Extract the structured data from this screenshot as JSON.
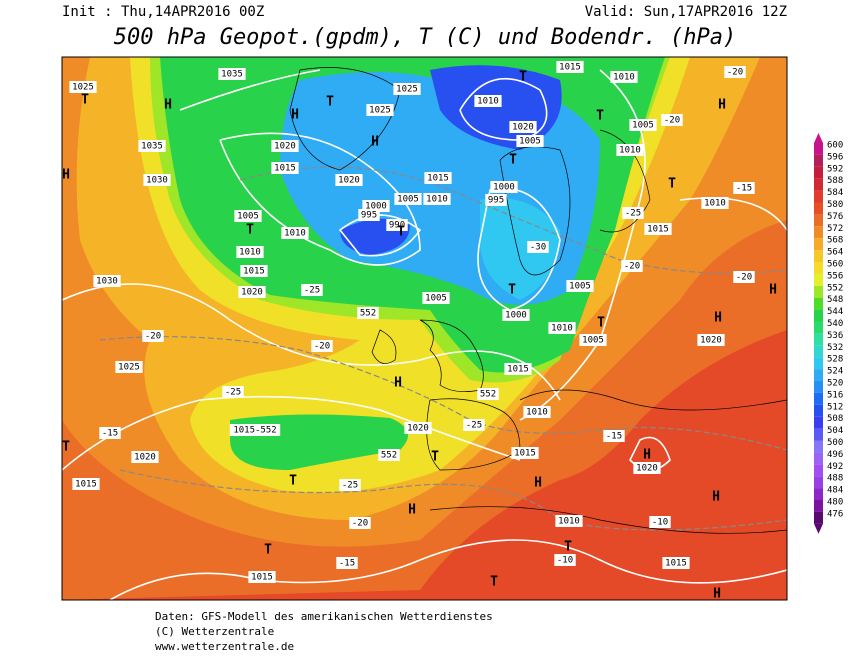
{
  "header": {
    "init": "Init : Thu,14APR2016 00Z",
    "valid": "Valid: Sun,17APR2016 12Z",
    "title": "500 hPa Geopot.(gpdm), T (C) und Bodendr. (hPa)"
  },
  "footer": [
    "Daten: GFS-Modell des amerikanischen Wetterdienstes",
    "(C) Wetterzentrale",
    "www.wetterzentrale.de"
  ],
  "colorbar": {
    "levels": [
      600,
      596,
      592,
      588,
      584,
      580,
      576,
      572,
      568,
      564,
      560,
      556,
      552,
      548,
      544,
      540,
      536,
      532,
      528,
      524,
      520,
      516,
      512,
      508,
      504,
      500,
      496,
      492,
      488,
      484,
      480,
      476
    ],
    "colors": [
      "#c8148c",
      "#b41e5a",
      "#c31e3c",
      "#d22832",
      "#e13c2d",
      "#e65028",
      "#eb6e28",
      "#f08c28",
      "#f5aa28",
      "#f5c828",
      "#f5dc28",
      "#e6f028",
      "#a0e628",
      "#50dc28",
      "#28d24a",
      "#28dc6e",
      "#30e0a0",
      "#30d8d0",
      "#30c8f0",
      "#30acf5",
      "#2890f5",
      "#1e6ef5",
      "#2850f0",
      "#3c3cf0",
      "#5a5af5",
      "#8478f8",
      "#9c64f5",
      "#a050f0",
      "#9640e6",
      "#8c28c8",
      "#7a14a0",
      "#5a0a6e"
    ]
  },
  "map_labels": [
    "T",
    "1025",
    "1035",
    "H",
    "1035",
    "1030",
    "H",
    "H",
    "T",
    "1025",
    "1025",
    "H",
    "1020",
    "1015",
    "1020",
    "1015",
    "1005",
    "1000",
    "995",
    "990",
    "T",
    "1010",
    "1005",
    "T",
    "1010",
    "1010",
    "1015",
    "1020",
    "1030",
    "-20",
    "1025",
    "-15",
    "1020",
    "1015",
    "T",
    "1015-552",
    "1020",
    "552",
    "T",
    "T",
    "-25",
    "-20",
    "H",
    "T",
    "1015",
    "-15",
    "-25",
    "H",
    "1005",
    "552",
    "-25",
    "-20",
    "T",
    "1000",
    "1015",
    "1010",
    "1005",
    "1005",
    "T",
    "1010",
    "1015",
    "H",
    "552",
    "-25",
    "-30",
    "995",
    "1000",
    "T",
    "1005",
    "T",
    "1015",
    "1010",
    "1010",
    "1020",
    "T",
    "1005",
    "-20",
    "1010",
    "T",
    "1010",
    "-15",
    "-20",
    "H",
    "1015",
    "-25",
    "-20",
    "-20",
    "H",
    "H",
    "1020",
    "-15",
    "H",
    "1020",
    "-10",
    "H",
    "1010",
    "T",
    "-10",
    "1015",
    "T",
    "H"
  ]
}
